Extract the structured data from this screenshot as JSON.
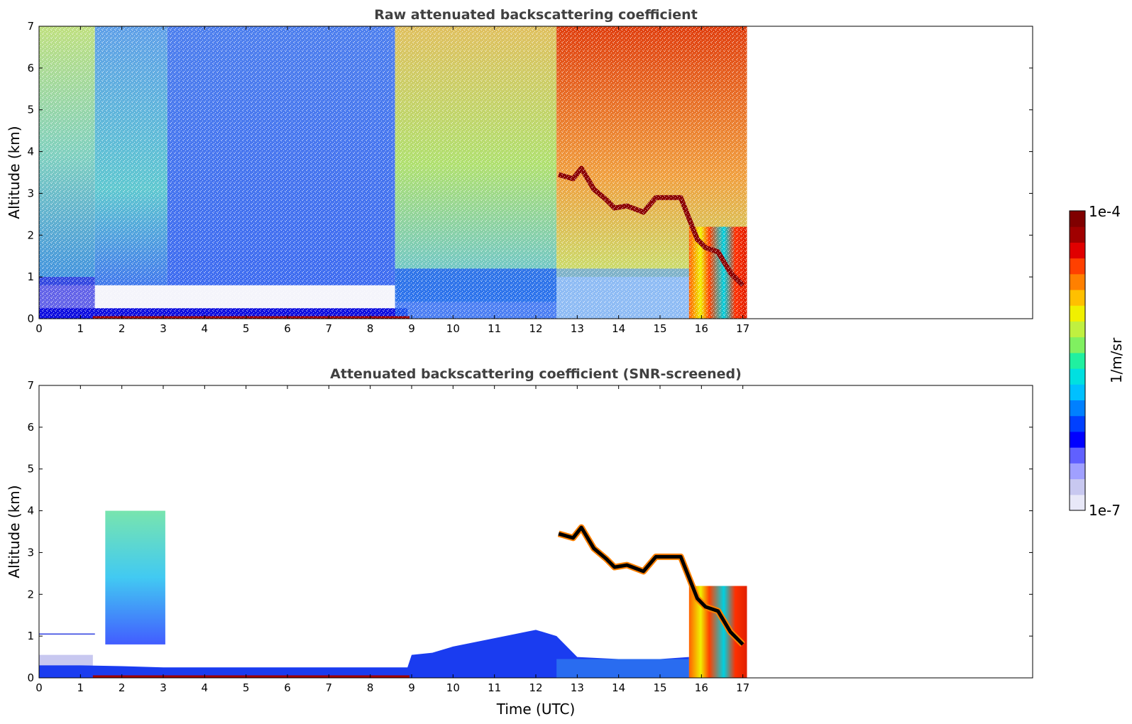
{
  "chart_data": [
    {
      "type": "heatmap",
      "title": "Raw attenuated backscattering coefficient",
      "xlabel": "",
      "ylabel": "Altitude (km)",
      "xlim": [
        0,
        24
      ],
      "ylim": [
        0,
        7
      ],
      "xticks": [
        0,
        1,
        2,
        3,
        4,
        5,
        6,
        7,
        8,
        9,
        10,
        11,
        12,
        13,
        14,
        15,
        16,
        17
      ],
      "yticks": [
        0,
        1,
        2,
        3,
        4,
        5,
        6,
        7
      ],
      "data_extent_hours": [
        0,
        17.1
      ],
      "regions": [
        {
          "t": [
            0,
            1.35
          ],
          "alt": [
            0.8,
            7
          ],
          "level": "green-cyan"
        },
        {
          "t": [
            1.35,
            3.1
          ],
          "alt": [
            0.5,
            7
          ],
          "level": "blue-green"
        },
        {
          "t": [
            3.1,
            8.6
          ],
          "alt": [
            0.6,
            7
          ],
          "level": "blue"
        },
        {
          "t": [
            8.6,
            12.5
          ],
          "alt": [
            0.4,
            7
          ],
          "level": "yellow-green"
        },
        {
          "t": [
            12.5,
            17.1
          ],
          "alt": [
            1.0,
            7
          ],
          "level": "orange-red"
        }
      ],
      "cloud_layer": [
        [
          12.55,
          3.45
        ],
        [
          12.9,
          3.35
        ],
        [
          13.1,
          3.6
        ],
        [
          13.4,
          3.1
        ],
        [
          13.7,
          2.85
        ],
        [
          13.9,
          2.65
        ],
        [
          14.2,
          2.7
        ],
        [
          14.6,
          2.55
        ],
        [
          14.9,
          2.9
        ],
        [
          15.3,
          2.9
        ],
        [
          15.5,
          2.9
        ],
        [
          15.7,
          2.4
        ],
        [
          15.9,
          1.9
        ],
        [
          16.1,
          1.7
        ],
        [
          16.4,
          1.6
        ],
        [
          16.7,
          1.1
        ],
        [
          17.0,
          0.8
        ]
      ],
      "precipitation_hours": [
        15.7,
        17.1
      ],
      "colorbar": {
        "label": "1/m/sr",
        "min_label": "1e-7",
        "max_label": "1e-4"
      }
    },
    {
      "type": "heatmap",
      "title": "Attenuated backscattering coefficient (SNR-screened)",
      "xlabel": "Time (UTC)",
      "ylabel": "Altitude (km)",
      "xlim": [
        0,
        24
      ],
      "ylim": [
        0,
        7
      ],
      "xticks": [
        0,
        1,
        2,
        3,
        4,
        5,
        6,
        7,
        8,
        9,
        10,
        11,
        12,
        13,
        14,
        15,
        16,
        17
      ],
      "yticks": [
        0,
        1,
        2,
        3,
        4,
        5,
        6,
        7
      ],
      "data_extent_hours": [
        0,
        17.1
      ],
      "boundary_layer": [
        [
          0,
          0.3
        ],
        [
          1,
          0.3
        ],
        [
          2,
          0.28
        ],
        [
          3,
          0.25
        ],
        [
          4,
          0.25
        ],
        [
          5,
          0.25
        ],
        [
          6,
          0.25
        ],
        [
          7,
          0.25
        ],
        [
          8,
          0.25
        ],
        [
          8.9,
          0.25
        ],
        [
          9.0,
          0.55
        ],
        [
          9.5,
          0.6
        ],
        [
          10,
          0.75
        ],
        [
          10.5,
          0.85
        ],
        [
          11,
          0.95
        ],
        [
          11.5,
          1.05
        ],
        [
          12,
          1.15
        ],
        [
          12.5,
          1.0
        ],
        [
          13,
          0.5
        ],
        [
          14,
          0.45
        ],
        [
          15,
          0.45
        ],
        [
          15.7,
          0.5
        ]
      ],
      "aerosol_plume": {
        "t": [
          1.6,
          3.05
        ],
        "alt": [
          0.8,
          4.0
        ],
        "level": "cyan-blue"
      },
      "cloud_layer": [
        [
          12.55,
          3.45
        ],
        [
          12.9,
          3.35
        ],
        [
          13.1,
          3.6
        ],
        [
          13.4,
          3.1
        ],
        [
          13.7,
          2.85
        ],
        [
          13.9,
          2.65
        ],
        [
          14.2,
          2.7
        ],
        [
          14.6,
          2.55
        ],
        [
          14.9,
          2.9
        ],
        [
          15.3,
          2.9
        ],
        [
          15.5,
          2.9
        ],
        [
          15.7,
          2.4
        ],
        [
          15.9,
          1.9
        ],
        [
          16.1,
          1.7
        ],
        [
          16.4,
          1.6
        ],
        [
          16.7,
          1.1
        ],
        [
          17.0,
          0.8
        ]
      ],
      "precipitation_hours": [
        15.7,
        17.1
      ],
      "colorbar": {
        "label": "1/m/sr",
        "min_label": "1e-7",
        "max_label": "1e-4"
      }
    }
  ],
  "colorbar": {
    "label": "1/m/sr",
    "min_label": "1e-7",
    "max_label": "1e-4",
    "colors": [
      "#e8e8f8",
      "#c8c8f0",
      "#a0a0ff",
      "#6060ff",
      "#0000ff",
      "#0040ff",
      "#0080ff",
      "#00c0ff",
      "#00e0e0",
      "#20f0a0",
      "#80f060",
      "#c0f040",
      "#f0f000",
      "#ffc000",
      "#ff8000",
      "#ff4000",
      "#e00000",
      "#a00000",
      "#800000"
    ]
  }
}
